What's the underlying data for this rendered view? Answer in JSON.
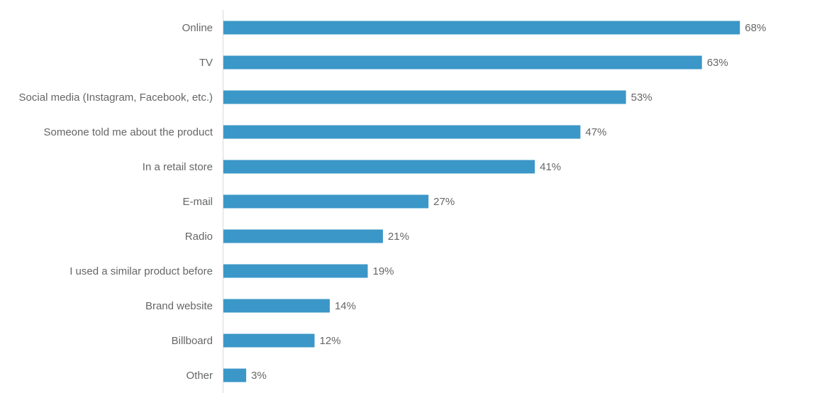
{
  "chart_data": {
    "type": "bar",
    "orientation": "horizontal",
    "categories": [
      "Online",
      "TV",
      "Social media (Instagram, Facebook, etc.)",
      "Someone told me about the product",
      "In a retail store",
      "E-mail",
      "Radio",
      "I used a similar product before",
      "Brand website",
      "Billboard",
      "Other"
    ],
    "values": [
      68,
      63,
      53,
      47,
      41,
      27,
      21,
      19,
      14,
      12,
      3
    ],
    "value_labels": [
      "68%",
      "63%",
      "53%",
      "47%",
      "41%",
      "27%",
      "21%",
      "19%",
      "14%",
      "12%",
      "3%"
    ],
    "unit": "%",
    "xlim": [
      0,
      100
    ],
    "grid": false,
    "legend": "none",
    "colors": {
      "bar": "#3b97c7",
      "label": "#666666",
      "axis": "#d9d9d9"
    }
  }
}
